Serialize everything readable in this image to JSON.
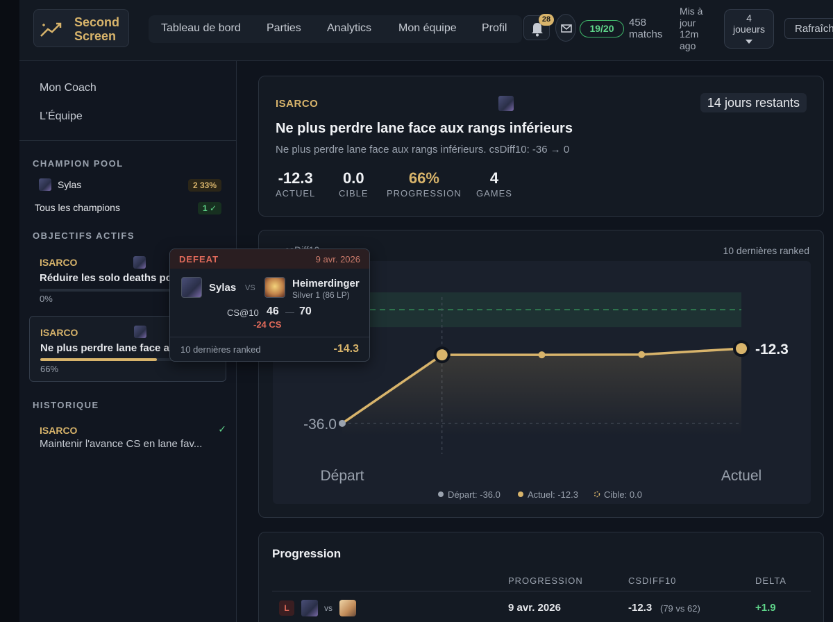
{
  "app": {
    "brand": "Second Screen",
    "nav": [
      "Tableau de bord",
      "Parties",
      "Analytics",
      "Mon équipe",
      "Profil"
    ],
    "notifications_count": "28",
    "match_ratio": "19/20",
    "matches": "458 matchs",
    "updated": "Mis à jour 12m ago",
    "players": "4 joueurs",
    "refresh_label": "Rafraîchir"
  },
  "sidebar": {
    "links": [
      "Mon Coach",
      "L'Équipe"
    ],
    "champion_pool_heading": "CHAMPION POOL",
    "pool": [
      {
        "name": "Sylas",
        "badge": "2 33%"
      },
      {
        "name": "Tous les champions",
        "badge": "1 ✓"
      }
    ],
    "active_heading": "OBJECTIFS ACTIFS",
    "active_objectives": [
      {
        "owner": "ISARCO",
        "title": "Réduire les solo deaths pour…",
        "progress": 0,
        "progress_label": "0%"
      },
      {
        "owner": "ISARCO",
        "title": "Ne plus perdre lane face aux rangs inférieurs",
        "progress": 66,
        "progress_label": "66%"
      }
    ],
    "history_heading": "HISTORIQUE",
    "history": [
      {
        "owner": "ISARCO",
        "title": "Maintenir l'avance CS en lane fav...",
        "check": "✓"
      }
    ]
  },
  "goal": {
    "owner": "ISARCO",
    "days_left": "14 jours restants",
    "title": "Ne plus perdre lane face aux rangs inférieurs",
    "description": "Ne plus perdre lane face aux rangs inférieurs. csDiff10: -36 → 0",
    "stats": [
      {
        "value": "-12.3",
        "label": "ACTUEL"
      },
      {
        "value": "0.0",
        "label": "CIBLE"
      },
      {
        "value": "66%",
        "label": "PROGRESSION"
      },
      {
        "value": "4",
        "label": "GAMES"
      }
    ]
  },
  "chart_panel": {
    "title": "csDiff10",
    "subtitle": "10 dernières ranked"
  },
  "chart_data": {
    "type": "line",
    "categories": [
      "Départ",
      "",
      "",
      "",
      "Actuel"
    ],
    "x_tick_labels": [
      "Départ",
      "Actuel"
    ],
    "values": [
      -36.0,
      -14.3,
      -14.3,
      -14.2,
      -12.3
    ],
    "point_labels": {
      "first": "-36.0",
      "last": "-12.3"
    },
    "target": 0.0,
    "ylim": [
      -40,
      4
    ],
    "legend": [
      "Départ: -36.0",
      "Actuel: -12.3",
      "Cible: 0.0"
    ],
    "legend_position": "bottom",
    "colors": {
      "line": "#d8b46b",
      "start": "#9aa2ae",
      "target": "#3fb86a"
    }
  },
  "tooltip": {
    "result": "DEFEAT",
    "date": "9 avr. 2026",
    "champion": "Sylas",
    "vs": "VS",
    "opponent": "Heimerdinger",
    "opponent_rank": "Silver 1 (86 LP)",
    "cs_label": "CS@10",
    "cs_self": "46",
    "cs_sep": "—",
    "cs_opp": "70",
    "cs_diff": "-24 CS",
    "footer_label": "10 dernières ranked",
    "footer_value": "-14.3"
  },
  "progression": {
    "title": "Progression",
    "headers": [
      "PROGRESSION",
      "CSDIFF10",
      "DELTA"
    ],
    "rows": [
      {
        "result": "L",
        "vs": "vs",
        "date": "9 avr. 2026",
        "csdiff": "-12.3",
        "detail": "(79 vs 62)",
        "delta": "+1.9"
      }
    ]
  }
}
